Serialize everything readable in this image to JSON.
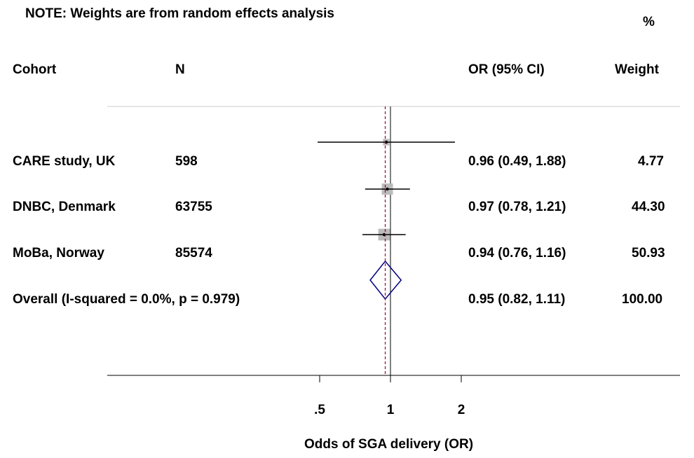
{
  "note": "NOTE: Weights are from random effects analysis",
  "headers": {
    "cohort": "Cohort",
    "n": "N",
    "or_ci": "OR (95% CI)",
    "weight_top": "%",
    "weight": "Weight"
  },
  "rows": [
    {
      "cohort": "CARE study, UK",
      "n": "598",
      "or_ci": "0.96 (0.49, 1.88)",
      "weight": "4.77"
    },
    {
      "cohort": "DNBC, Denmark",
      "n": "63755",
      "or_ci": "0.97 (0.78, 1.21)",
      "weight": "44.30"
    },
    {
      "cohort": "MoBa, Norway",
      "n": "85574",
      "or_ci": "0.94 (0.76, 1.16)",
      "weight": "50.93"
    }
  ],
  "overall": {
    "label": "Overall  (I-squared = 0.0%, p = 0.979)",
    "or_ci": "0.95 (0.82, 1.11)",
    "weight": "100.00"
  },
  "chart_data": {
    "type": "forest",
    "x_scale": "log",
    "xlabel": "Odds of SGA delivery (OR)",
    "xticks": [
      0.5,
      1,
      2
    ],
    "xtick_labels": [
      ".5",
      "1",
      "2"
    ],
    "null_line": 1,
    "pooled_line": 0.95,
    "studies": [
      {
        "name": "CARE study, UK",
        "or": 0.96,
        "lower": 0.49,
        "upper": 1.88,
        "weight": 4.77
      },
      {
        "name": "DNBC, Denmark",
        "or": 0.97,
        "lower": 0.78,
        "upper": 1.21,
        "weight": 44.3
      },
      {
        "name": "MoBa, Norway",
        "or": 0.94,
        "lower": 0.76,
        "upper": 1.16,
        "weight": 50.93
      }
    ],
    "pooled": {
      "or": 0.95,
      "lower": 0.82,
      "upper": 1.11,
      "weight": 100.0
    },
    "colors": {
      "box": "#bbbbbb",
      "diamond": "#000080",
      "pooled_line": "#990033",
      "lines": "#000000"
    }
  }
}
